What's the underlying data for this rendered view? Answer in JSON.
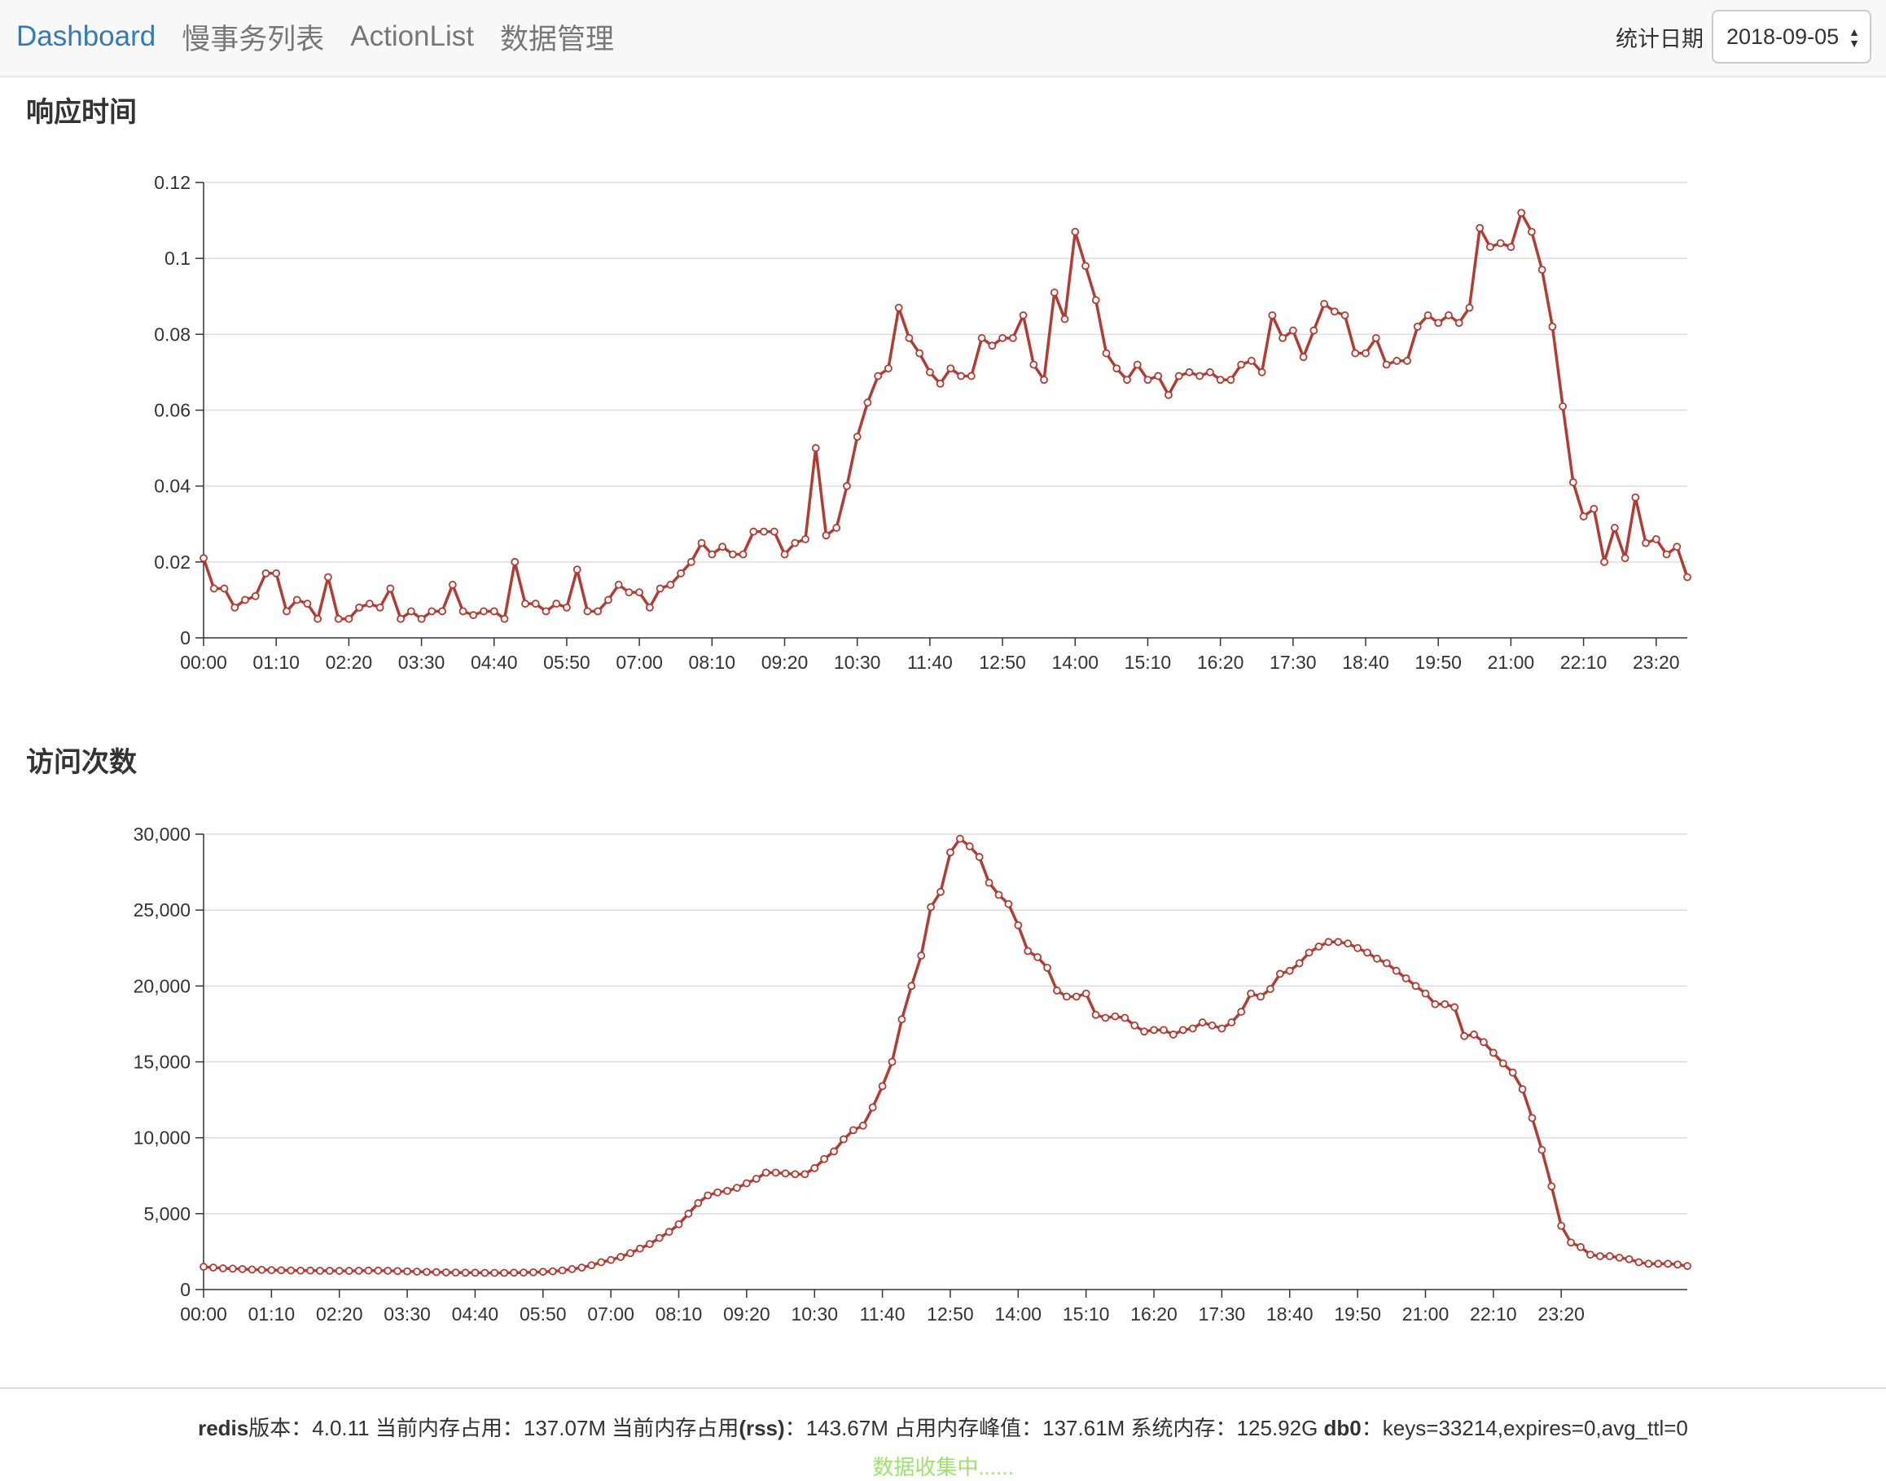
{
  "navbar": {
    "links": [
      {
        "label": "Dashboard",
        "active": true
      },
      {
        "label": "慢事务列表",
        "active": false
      },
      {
        "label": "ActionList",
        "active": false
      },
      {
        "label": "数据管理",
        "active": false
      }
    ],
    "date_label": "统计日期",
    "date_value": "2018-09-05"
  },
  "sections": [
    {
      "title": "响应时间"
    },
    {
      "title": "访问次数"
    }
  ],
  "colors": {
    "series": "#b23b33",
    "grid": "#dcdcdc",
    "axis": "#333333",
    "status": "#9be36a",
    "active_link": "#337ab7"
  },
  "chart_data": [
    {
      "type": "line",
      "xlabel": "",
      "ylabel": "",
      "x_ticks": [
        "00:00",
        "01:10",
        "02:20",
        "03:30",
        "04:40",
        "05:50",
        "07:00",
        "08:10",
        "09:20",
        "10:30",
        "11:40",
        "12:50",
        "14:00",
        "15:10",
        "16:20",
        "17:30",
        "18:40",
        "19:50",
        "21:00",
        "22:10",
        "23:20"
      ],
      "y_ticks": [
        "0",
        "0.02",
        "0.04",
        "0.06",
        "0.08",
        "0.1",
        "0.12"
      ],
      "ylim": [
        0,
        0.12
      ],
      "x_interval_minutes": 10,
      "grid": true,
      "series": [
        {
          "values": [
            0.021,
            0.013,
            0.013,
            0.008,
            0.01,
            0.011,
            0.017,
            0.017,
            0.007,
            0.01,
            0.009,
            0.005,
            0.016,
            0.005,
            0.005,
            0.008,
            0.009,
            0.008,
            0.013,
            0.005,
            0.007,
            0.005,
            0.007,
            0.007,
            0.014,
            0.007,
            0.006,
            0.007,
            0.007,
            0.005,
            0.02,
            0.009,
            0.009,
            0.007,
            0.009,
            0.008,
            0.018,
            0.007,
            0.007,
            0.01,
            0.014,
            0.012,
            0.012,
            0.008,
            0.013,
            0.014,
            0.017,
            0.02,
            0.025,
            0.022,
            0.024,
            0.022,
            0.022,
            0.028,
            0.028,
            0.028,
            0.022,
            0.025,
            0.026,
            0.05,
            0.027,
            0.029,
            0.04,
            0.053,
            0.062,
            0.069,
            0.071,
            0.087,
            0.079,
            0.075,
            0.07,
            0.067,
            0.071,
            0.069,
            0.069,
            0.079,
            0.077,
            0.079,
            0.079,
            0.085,
            0.072,
            0.068,
            0.091,
            0.084,
            0.107,
            0.098,
            0.089,
            0.075,
            0.071,
            0.068,
            0.072,
            0.068,
            0.069,
            0.064,
            0.069,
            0.07,
            0.069,
            0.07,
            0.068,
            0.068,
            0.072,
            0.073,
            0.07,
            0.085,
            0.079,
            0.081,
            0.074,
            0.081,
            0.088,
            0.086,
            0.085,
            0.075,
            0.075,
            0.079,
            0.072,
            0.073,
            0.073,
            0.082,
            0.085,
            0.083,
            0.085,
            0.083,
            0.087,
            0.108,
            0.103,
            0.104,
            0.103,
            0.112,
            0.107,
            0.097,
            0.082,
            0.061,
            0.041,
            0.032,
            0.034,
            0.02,
            0.029,
            0.021,
            0.037,
            0.025,
            0.026,
            0.022,
            0.024,
            0.016
          ]
        }
      ]
    },
    {
      "type": "line",
      "xlabel": "",
      "ylabel": "",
      "x_ticks": [
        "00:00",
        "01:10",
        "02:20",
        "03:30",
        "04:40",
        "05:50",
        "07:00",
        "08:10",
        "09:20",
        "10:30",
        "11:40",
        "12:50",
        "14:00",
        "15:10",
        "16:20",
        "17:30",
        "18:40",
        "19:50",
        "21:00",
        "22:10",
        "23:20"
      ],
      "y_ticks": [
        "0",
        "5,000",
        "10,000",
        "15,000",
        "20,000",
        "25,000",
        "30,000"
      ],
      "ylim": [
        0,
        30000
      ],
      "x_interval_minutes": 10,
      "grid": true,
      "series": [
        {
          "values": [
            1500,
            1450,
            1400,
            1380,
            1350,
            1320,
            1300,
            1280,
            1270,
            1260,
            1250,
            1250,
            1240,
            1240,
            1230,
            1230,
            1240,
            1250,
            1250,
            1240,
            1220,
            1200,
            1180,
            1160,
            1150,
            1130,
            1120,
            1110,
            1110,
            1100,
            1100,
            1100,
            1110,
            1120,
            1140,
            1170,
            1200,
            1260,
            1350,
            1450,
            1600,
            1800,
            1950,
            2150,
            2400,
            2700,
            3000,
            3400,
            3800,
            4300,
            5000,
            5700,
            6200,
            6400,
            6500,
            6700,
            7000,
            7300,
            7700,
            7700,
            7650,
            7600,
            7600,
            8000,
            8600,
            9100,
            9900,
            10500,
            10800,
            12000,
            13400,
            15000,
            17800,
            20000,
            22000,
            25200,
            26200,
            28800,
            29700,
            29200,
            28500,
            26800,
            26000,
            25400,
            24000,
            22300,
            21900,
            21200,
            19700,
            19300,
            19300,
            19500,
            18100,
            17900,
            18000,
            17900,
            17400,
            17000,
            17100,
            17100,
            16800,
            17100,
            17200,
            17600,
            17400,
            17200,
            17600,
            18300,
            19500,
            19300,
            19800,
            20800,
            21000,
            21500,
            22200,
            22600,
            22900,
            22900,
            22800,
            22500,
            22200,
            21800,
            21500,
            21000,
            20500,
            20000,
            19500,
            18800,
            18800,
            18600,
            16700,
            16800,
            16300,
            15600,
            14900,
            14300,
            13200,
            11300,
            9200,
            6800,
            4200,
            3100,
            2800,
            2300,
            2200,
            2200,
            2100,
            2000,
            1800,
            1700,
            1700,
            1700,
            1650,
            1550
          ]
        }
      ]
    }
  ],
  "footer": {
    "stats": [
      {
        "label": "redis",
        "suffix": "版本：",
        "value": "4.0.11"
      },
      {
        "label": "",
        "suffix": "当前内存占用：",
        "value": "137.07M"
      },
      {
        "label": "",
        "suffix": "当前内存占用",
        "bold_part": "(rss)",
        "suffix2": "：",
        "value": "143.67M"
      },
      {
        "label": "",
        "suffix": "占用内存峰值：",
        "value": "137.61M"
      },
      {
        "label": "",
        "suffix": "系统内存：",
        "value": "125.92G"
      },
      {
        "label": "db0",
        "suffix": "：",
        "value": "keys=33214,expires=0,avg_ttl=0"
      }
    ],
    "status": "数据收集中......"
  }
}
